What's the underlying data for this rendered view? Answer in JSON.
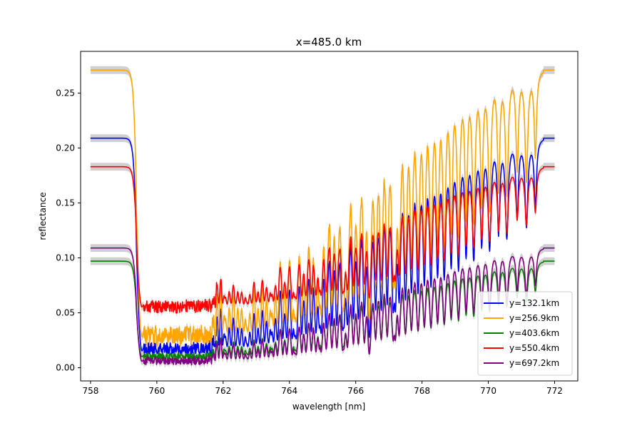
{
  "chart_data": {
    "type": "line",
    "title": "x=485.0 km",
    "xlabel": "wavelength [nm]",
    "ylabel": "reflectance",
    "xlim": [
      757.7,
      772.7
    ],
    "ylim": [
      -0.012,
      0.288
    ],
    "xticks": [
      758,
      760,
      762,
      764,
      766,
      768,
      770,
      772
    ],
    "xtick_labels": [
      "758",
      "760",
      "762",
      "764",
      "766",
      "768",
      "770",
      "772"
    ],
    "yticks": [
      0.0,
      0.05,
      0.1,
      0.15,
      0.2,
      0.25
    ],
    "ytick_labels": [
      "0.00",
      "0.05",
      "0.10",
      "0.15",
      "0.20",
      "0.25"
    ],
    "grid": false,
    "legend_position": "lower-right",
    "uncertainty_band_color": "#c8c8c8",
    "series": [
      {
        "name": "y=132.1km",
        "color": "#0000ff",
        "continuum": 0.209,
        "floor_ratio": 0.07,
        "min_ratio": 0.06
      },
      {
        "name": "y=256.9km",
        "color": "#ffa500",
        "continuum": 0.271,
        "floor_ratio": 0.1,
        "min_ratio": 0.07
      },
      {
        "name": "y=403.6km",
        "color": "#008000",
        "continuum": 0.097,
        "floor_ratio": 0.1,
        "min_ratio": 0.06
      },
      {
        "name": "y=550.4km",
        "color": "#ff0000",
        "continuum": 0.183,
        "floor_ratio": 0.3,
        "min_ratio": 0.26
      },
      {
        "name": "y=697.2km",
        "color": "#800080",
        "continuum": 0.109,
        "floor_ratio": 0.05,
        "min_ratio": 0.02
      }
    ]
  }
}
